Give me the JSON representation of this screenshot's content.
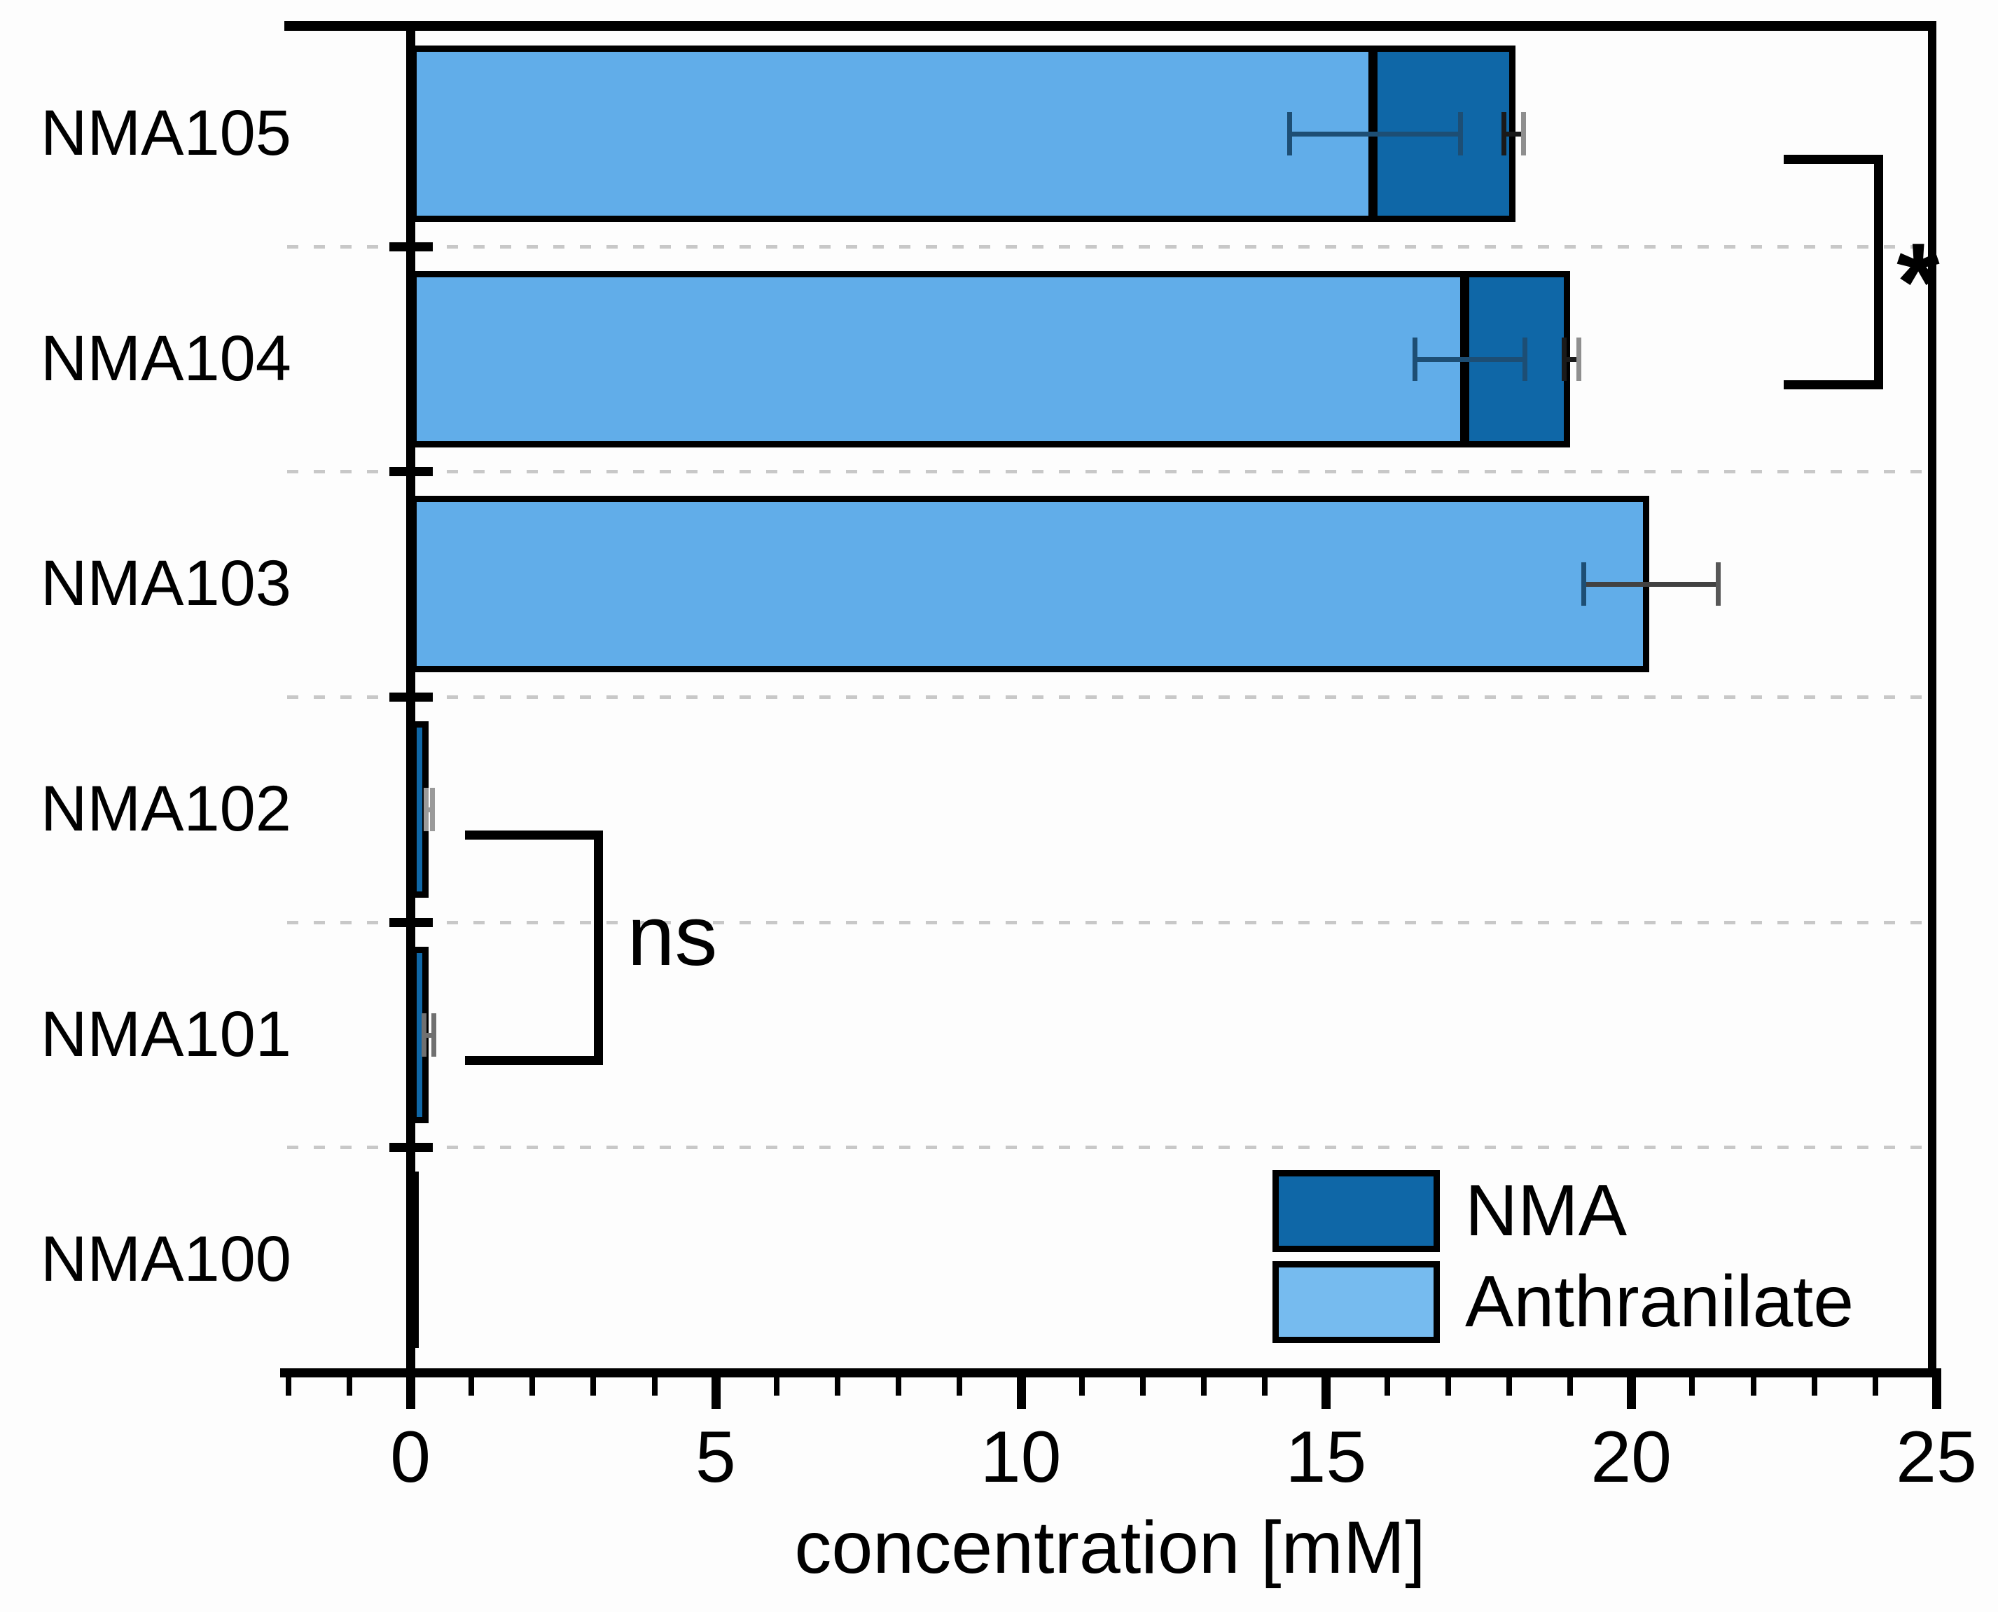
{
  "chart_data": {
    "type": "bar",
    "orientation": "horizontal",
    "stacked": true,
    "title": "",
    "categories": [
      "NMA105",
      "NMA104",
      "NMA103",
      "NMA102",
      "NMA101",
      "NMA100"
    ],
    "series": [
      {
        "name": "NMA",
        "color": "#0f67a7",
        "values": [
          2.3,
          1.7,
          0,
          0.3,
          0.3,
          0.1
        ]
      },
      {
        "name": "Anthranilate",
        "color": "#61ade9",
        "values": [
          15.8,
          17.3,
          20.3,
          0,
          0,
          0
        ]
      }
    ],
    "stack_order": [
      "Anthranilate",
      "NMA"
    ],
    "totals": [
      18.1,
      19.0,
      20.3,
      0.3,
      0.3,
      0.1
    ],
    "x_axis": {
      "label": "concentration [mM]",
      "min": -2.07,
      "max": 25,
      "ticks": [
        0,
        5,
        10,
        15,
        20,
        25
      ],
      "minor_tick_step": 1
    },
    "error_bars": [
      {
        "category": "NMA105",
        "series": "Anthranilate",
        "center": 15.8,
        "err": 1.4,
        "color_line": "#1d4e74",
        "color_cap_left": "#1d4e74",
        "color_cap_right": "#1d4e74"
      },
      {
        "category": "NMA105",
        "series": "total",
        "center": 18.07,
        "err": 0.16,
        "color_line": "#1a1a1a",
        "color_cap_left": "#1a1a1a",
        "color_cap_right": "#8f8f8f"
      },
      {
        "category": "NMA104",
        "series": "Anthranilate",
        "center": 17.35,
        "err": 0.9,
        "color_line": "#1d4e74",
        "color_cap_left": "#1d4e74",
        "color_cap_right": "#1d4e74"
      },
      {
        "category": "NMA104",
        "series": "total",
        "center": 19.02,
        "err": 0.12,
        "color_line": "#1a1a1a",
        "color_cap_left": "#1a1a1a",
        "color_cap_right": "#8f8f8f"
      },
      {
        "category": "NMA103",
        "series": "Anthranilate",
        "center": 20.32,
        "err": 1.1,
        "color_line": "#424242",
        "color_cap_left": "#1d4e74",
        "color_cap_right": "#575757"
      },
      {
        "category": "NMA102",
        "series": "NMA",
        "center": 0.3,
        "err": 0.05,
        "color_line": "#9a9a9a",
        "color_cap_left": "#9a9a9a",
        "color_cap_right": "#9a9a9a"
      },
      {
        "category": "NMA101",
        "series": "NMA",
        "center": 0.3,
        "err": 0.08,
        "color_line": "#707070",
        "color_cap_left": "#707070",
        "color_cap_right": "#707070"
      }
    ],
    "annotations": [
      {
        "label": "*",
        "from": "NMA105",
        "to": "NMA104",
        "x": 24.05,
        "arm_x": 22.5
      },
      {
        "label": "ns",
        "from": "NMA102",
        "to": "NMA101",
        "x": 3.07,
        "arm_x": 0.9
      }
    ],
    "legend": {
      "position": "bottom-right",
      "items": [
        "NMA",
        "Anthranilate"
      ]
    },
    "grid": {
      "row_separators": "dashed"
    },
    "colors": {
      "frame": "#000000",
      "grid_dash": "#c8c8c8",
      "background": "#fdfdfd"
    }
  }
}
